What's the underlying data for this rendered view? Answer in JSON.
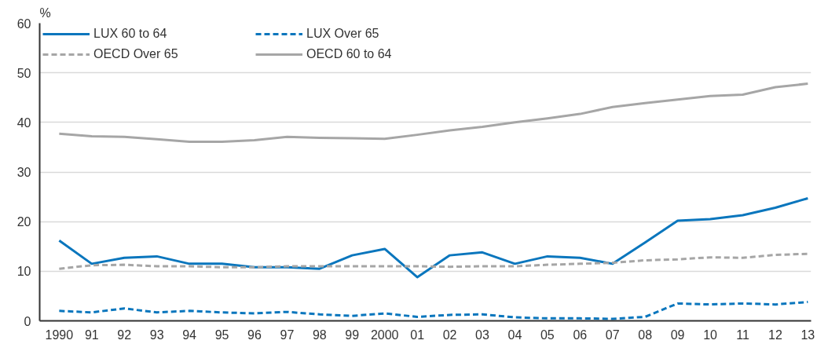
{
  "chart_data": {
    "type": "line",
    "ylabel": "%",
    "categories": [
      "1990",
      "91",
      "92",
      "93",
      "94",
      "95",
      "96",
      "97",
      "98",
      "99",
      "2000",
      "01",
      "02",
      "03",
      "04",
      "05",
      "06",
      "07",
      "08",
      "09",
      "10",
      "11",
      "12",
      "13"
    ],
    "ylim": [
      0,
      60
    ],
    "yticks": [
      0,
      10,
      20,
      30,
      40,
      50,
      60
    ],
    "grid": "y",
    "legend": "top left",
    "series": [
      {
        "name": "LUX 60 to 64",
        "color": "#0a76bd",
        "line_style": "solid",
        "values": [
          16.2,
          11.5,
          12.7,
          13,
          11.5,
          11.5,
          10.8,
          10.8,
          10.5,
          13.2,
          14.5,
          8.8,
          13.2,
          13.8,
          11.5,
          13,
          12.7,
          11.5,
          15.8,
          20.2,
          20.5,
          21.3,
          22.8,
          24.7
        ]
      },
      {
        "name": "LUX Over 65",
        "color": "#0a76bd",
        "line_style": "dashed",
        "values": [
          2,
          1.7,
          2.5,
          1.7,
          2,
          1.7,
          1.5,
          1.8,
          1.3,
          1,
          1.5,
          0.8,
          1.2,
          1.3,
          0.7,
          0.5,
          0.5,
          0.4,
          0.8,
          3.5,
          3.3,
          3.5,
          3.3,
          3.8
        ]
      },
      {
        "name": "OECD Over 65",
        "color": "#a6a6a6",
        "line_style": "dashed",
        "values": [
          10.5,
          11.2,
          11.3,
          11,
          11,
          10.8,
          10.8,
          11,
          11,
          11,
          11,
          11,
          10.9,
          11,
          11,
          11.3,
          11.5,
          11.7,
          12.2,
          12.4,
          12.8,
          12.7,
          13.3,
          13.5
        ]
      },
      {
        "name": "OECD 60 to 64",
        "color": "#a6a6a6",
        "line_style": "solid",
        "values": [
          37.7,
          37.2,
          37.1,
          36.6,
          36.1,
          36.1,
          36.4,
          37.1,
          36.9,
          36.8,
          36.7,
          37.5,
          38.4,
          39.1,
          40,
          40.8,
          41.7,
          43.1,
          43.9,
          44.6,
          45.3,
          45.6,
          47.1,
          47.8
        ]
      }
    ]
  }
}
